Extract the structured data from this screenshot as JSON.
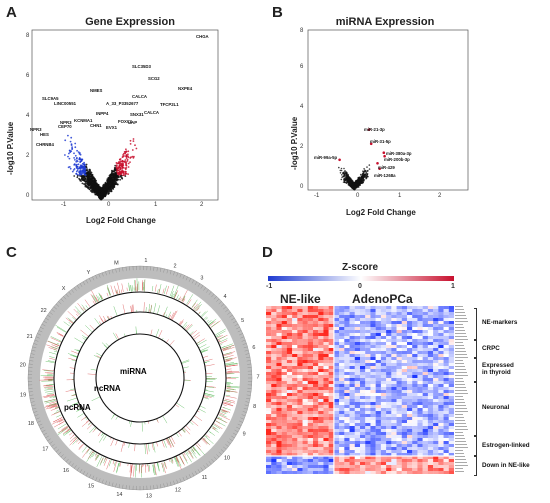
{
  "panels": {
    "a": {
      "letter": "A",
      "title": "Gene Expression",
      "xlabel": "Log2 Fold Change",
      "ylabel": "-log10 P.Value",
      "xticks": [
        "-1",
        "0",
        "1",
        "2"
      ],
      "yticks": [
        "0",
        "2",
        "4",
        "6",
        "8"
      ],
      "labels": [
        "CHGA",
        "SLC35D3",
        "SCG2",
        "NXPE4",
        "NMES",
        "SLC9A5",
        "LINC00551",
        "A_33_P3352677",
        "CALCA",
        "TFCP2L1",
        "INPP4",
        "NPR3",
        "KCNMA1",
        "CEP70",
        "CHN1",
        "SNX31",
        "FOXC1",
        "EVX1",
        "CALCA",
        "UAP",
        "NPR3",
        "HES",
        "CHRNB4"
      ]
    },
    "b": {
      "letter": "B",
      "title": "miRNA Expression",
      "xlabel": "Log2 Fold Change",
      "ylabel": "-log10 P.Value",
      "xticks": [
        "-1",
        "0",
        "1",
        "2"
      ],
      "yticks": [
        "0",
        "2",
        "4",
        "6",
        "8"
      ],
      "labels": [
        "miR-21-3p",
        "miR-31-5p",
        "miR-99a-5p",
        "miR-380a-3p",
        "miR-200b-3p",
        "miR-429",
        "miR-1268a"
      ]
    },
    "c": {
      "letter": "C",
      "rings": [
        "miRNA",
        "ncRNA",
        "pcRNA"
      ],
      "chromosomes": [
        "1",
        "2",
        "3",
        "4",
        "5",
        "6",
        "7",
        "8",
        "9",
        "10",
        "11",
        "12",
        "13",
        "14",
        "15",
        "16",
        "17",
        "18",
        "19",
        "20",
        "21",
        "22",
        "X",
        "Y",
        "M"
      ]
    },
    "d": {
      "letter": "D",
      "zlabel": "Z-score",
      "zmin": "-1",
      "zmid": "0",
      "zmax": "1",
      "group1": "NE-like",
      "group2": "AdenoPCa",
      "categories": [
        "NE-markers",
        "CRPC",
        "Expressed\nin thyroid",
        "Neuronal",
        "Estrogen-linked",
        "Down in NE-like"
      ]
    }
  },
  "colors": {
    "up": "#c8102e",
    "down": "#1f3bd1",
    "ns": "#111111",
    "mirna_up": "#c8102e"
  }
}
